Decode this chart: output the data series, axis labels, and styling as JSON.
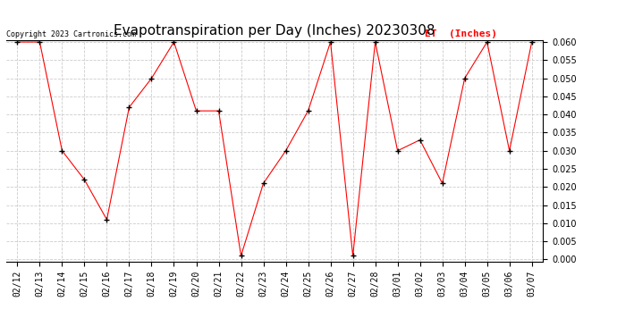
{
  "title": "Evapotranspiration per Day (Inches) 20230308",
  "copyright_text": "Copyright 2023 Cartronics.com",
  "legend_label": "ET  (Inches)",
  "dates": [
    "02/12",
    "02/13",
    "02/14",
    "02/15",
    "02/16",
    "02/17",
    "02/18",
    "02/19",
    "02/20",
    "02/21",
    "02/22",
    "02/23",
    "02/24",
    "02/25",
    "02/26",
    "02/27",
    "02/28",
    "03/01",
    "03/02",
    "03/03",
    "03/04",
    "03/05",
    "03/06",
    "03/07"
  ],
  "values": [
    0.06,
    0.06,
    0.03,
    0.022,
    0.011,
    0.042,
    0.05,
    0.06,
    0.041,
    0.041,
    0.001,
    0.021,
    0.03,
    0.041,
    0.06,
    0.001,
    0.06,
    0.03,
    0.033,
    0.021,
    0.05,
    0.06,
    0.03,
    0.06
  ],
  "line_color": "red",
  "marker_color": "black",
  "marker": "+",
  "ylim": [
    0.0,
    0.06
  ],
  "yticks": [
    0.0,
    0.005,
    0.01,
    0.015,
    0.02,
    0.025,
    0.03,
    0.035,
    0.04,
    0.045,
    0.05,
    0.055,
    0.06
  ],
  "bg_color": "white",
  "grid_color": "#cccccc",
  "title_fontsize": 11,
  "tick_fontsize": 7,
  "legend_color": "red",
  "legend_fontsize": 8
}
